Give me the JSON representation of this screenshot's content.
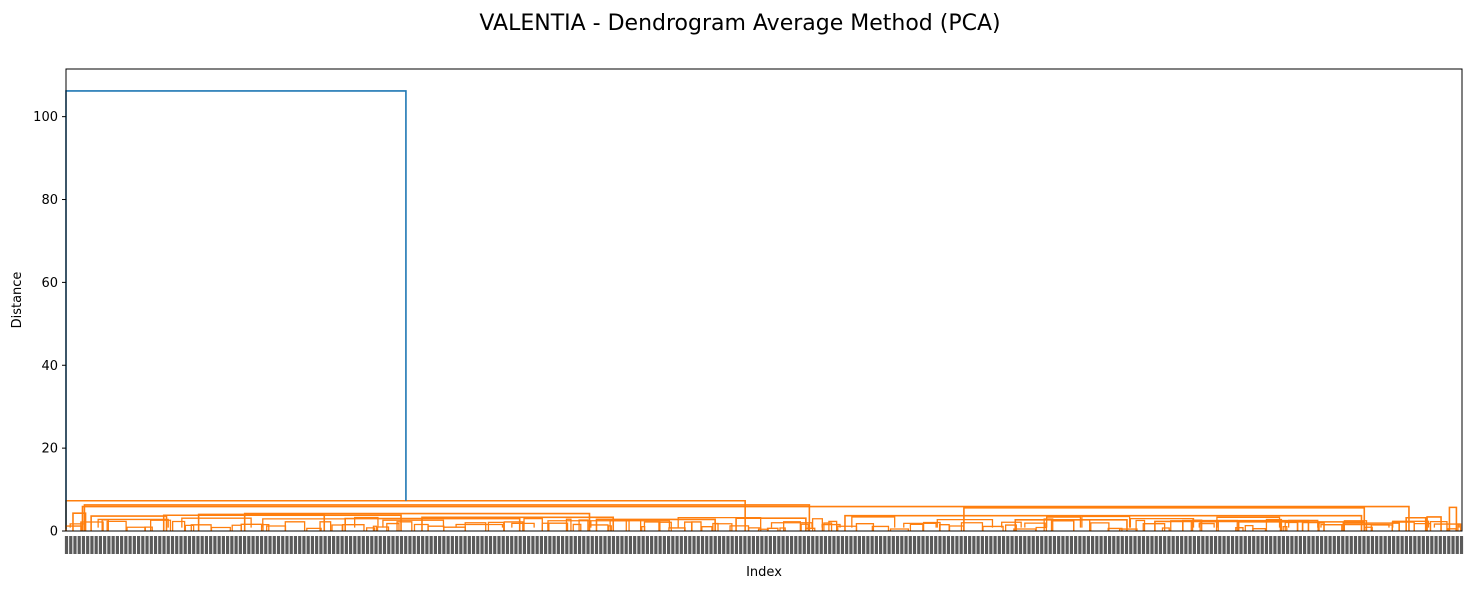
{
  "chart_data": {
    "type": "dendrogram",
    "title": "VALENTIA - Dendrogram Average Method (PCA)",
    "xlabel": "Index",
    "ylabel": "Distance",
    "ylim": [
      0,
      111.5
    ],
    "yticks": [
      0,
      20,
      40,
      60,
      80,
      100
    ],
    "n_leaves": 1400,
    "leaf_labels_note": "dense, illegible leaf index labels",
    "colors": {
      "top_link": "#1f77b4",
      "cluster": "#ff7f0e"
    },
    "top_merge": {
      "height": 106.2,
      "left_child": {
        "leaf_pos": 0.0,
        "height": 0.5
      },
      "right_child": {
        "leaf_pos": 0.2435,
        "height": 7.3
      }
    },
    "major_links": [
      {
        "height": 7.3,
        "left": 0.0,
        "right": 0.4865
      },
      {
        "height": 6.3,
        "left": 0.0132,
        "right": 0.5325
      },
      {
        "height": 5.9,
        "left": 0.0118,
        "right": 0.962
      },
      {
        "height": 5.6,
        "left": 0.6432,
        "right": 0.93
      },
      {
        "height": 5.7,
        "left": 0.991,
        "right": 0.996
      },
      {
        "height": 4.3,
        "left": 0.005,
        "right": 0.014
      },
      {
        "height": 4.2,
        "left": 0.128,
        "right": 0.375
      },
      {
        "height": 3.8,
        "left": 0.07,
        "right": 0.24
      },
      {
        "height": 4.0,
        "left": 0.095,
        "right": 0.185
      },
      {
        "height": 3.7,
        "left": 0.558,
        "right": 0.928
      },
      {
        "height": 3.6,
        "left": 0.018,
        "right": 0.072
      },
      {
        "height": 3.3,
        "left": 0.255,
        "right": 0.392
      },
      {
        "height": 3.1,
        "left": 0.48,
        "right": 0.53
      },
      {
        "height": 3.0,
        "left": 0.2,
        "right": 0.325
      },
      {
        "height": 3.2,
        "left": 0.96,
        "right": 0.974
      },
      {
        "height": 2.8,
        "left": 0.38,
        "right": 0.465
      },
      {
        "height": 2.7,
        "left": 0.68,
        "right": 0.76
      },
      {
        "height": 3.4,
        "left": 0.975,
        "right": 0.985
      },
      {
        "height": 2.5,
        "left": 0.8,
        "right": 0.89
      },
      {
        "height": 2.3,
        "left": 0.78,
        "right": 0.87
      },
      {
        "height": 2.2,
        "left": 0.84,
        "right": 0.93
      },
      {
        "height": 1.9,
        "left": 0.915,
        "right": 0.955
      }
    ]
  }
}
